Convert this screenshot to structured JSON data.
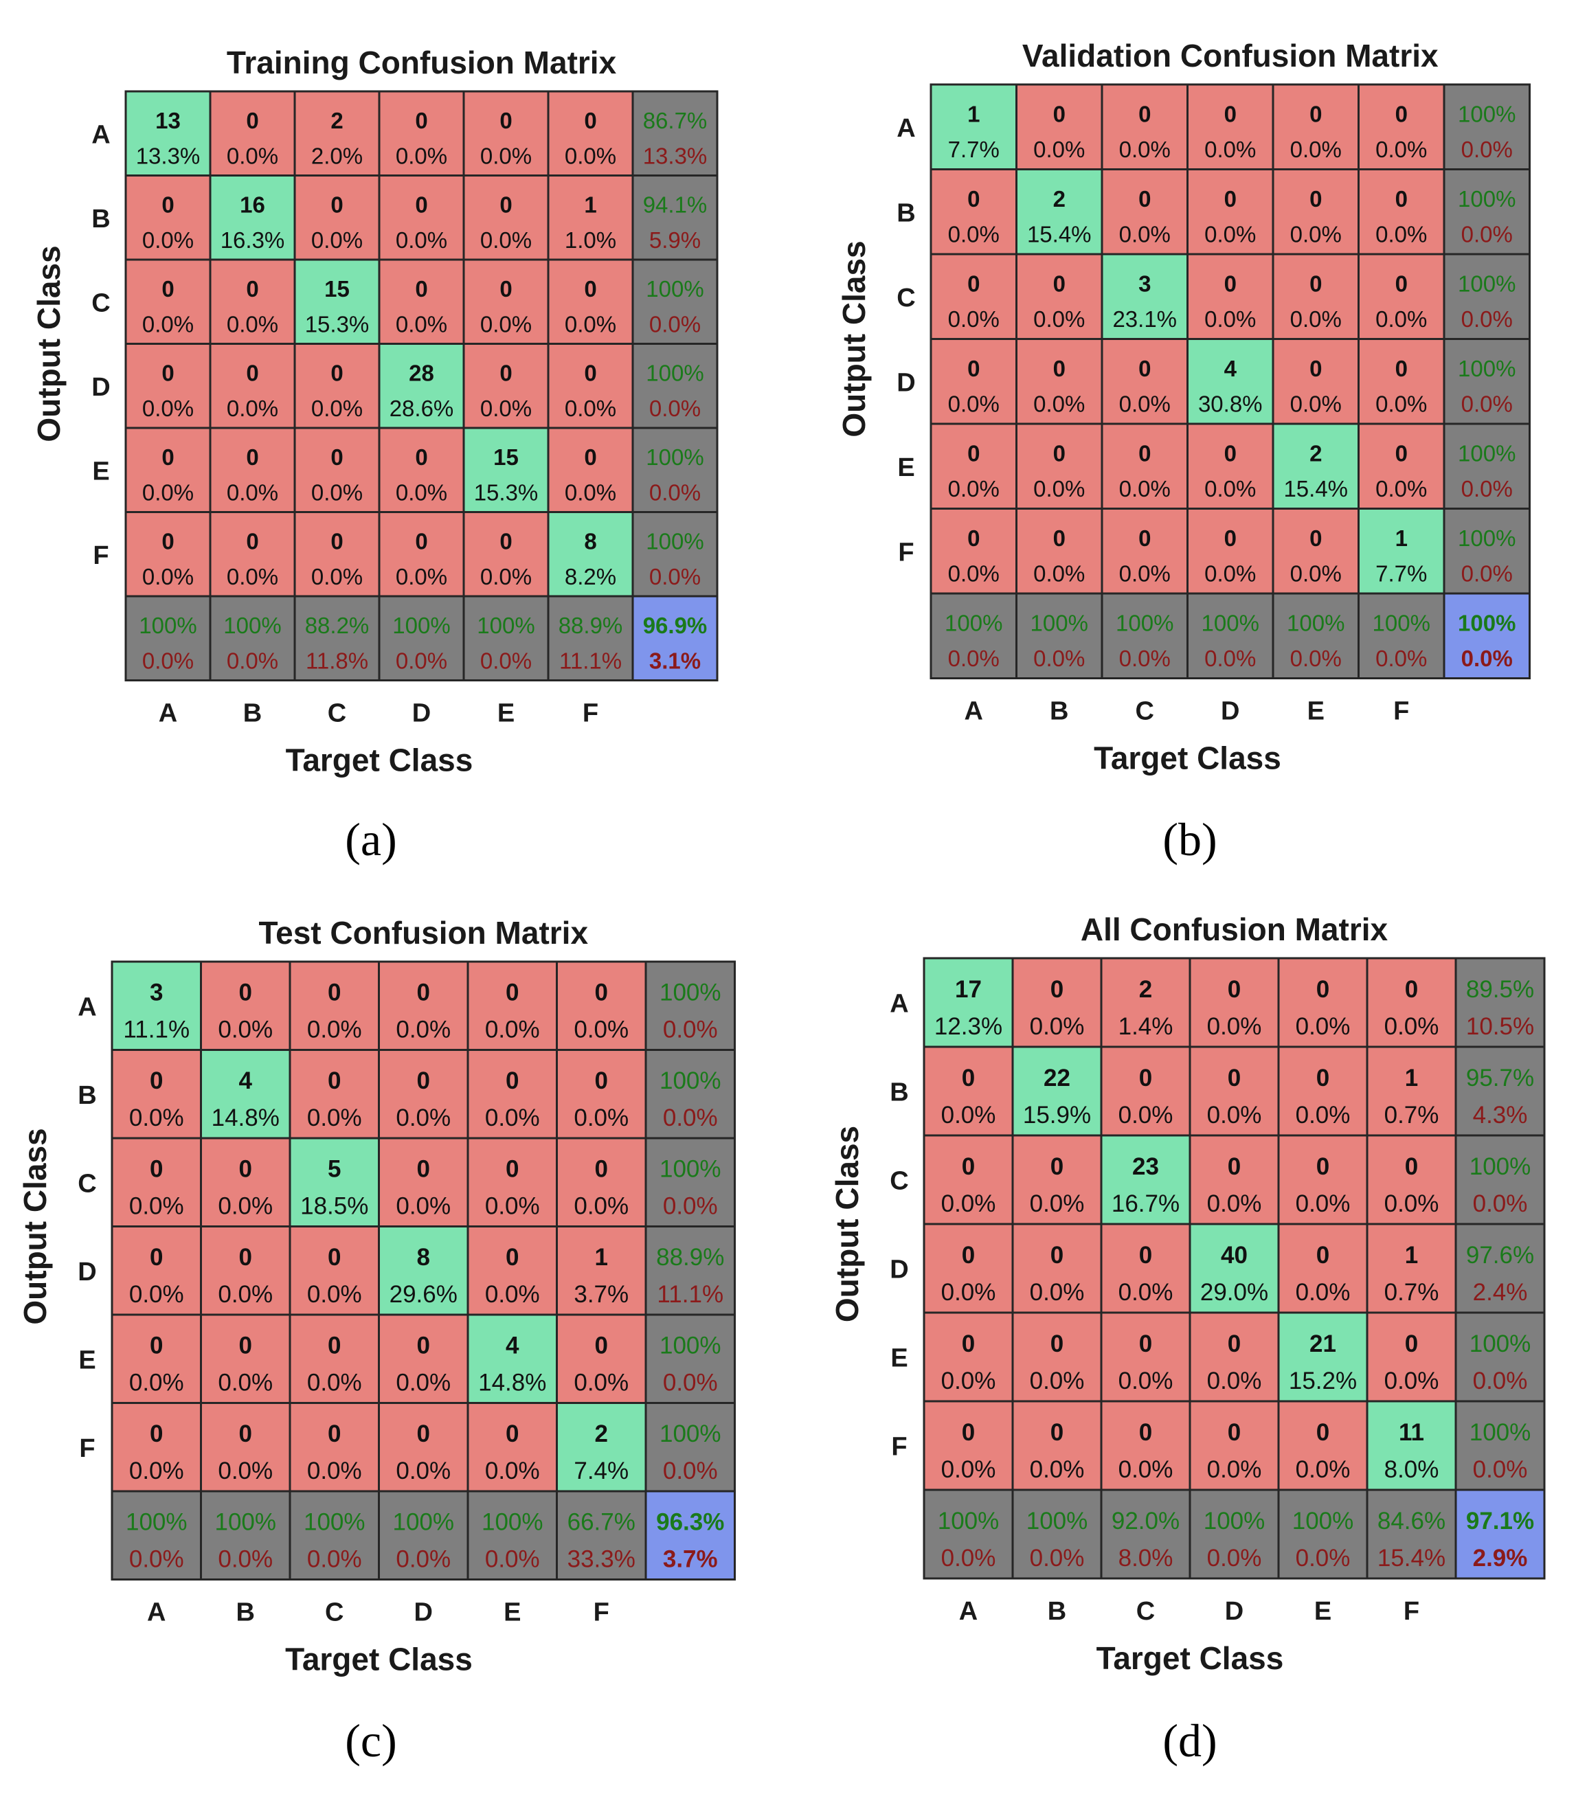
{
  "colors": {
    "correct_cell": "#7ee3b0",
    "wrong_cell": "#e8837e",
    "summary_cell": "#7f7f7f",
    "overall_cell": "#7f95ec",
    "grid_line": "#262626",
    "pct_text_green": "#1a7a1a",
    "pct_text_red": "#8b1a1a",
    "count_text": "#111111",
    "label_text": "#1a1a1a"
  },
  "chart_data": [
    {
      "type": "heatmap",
      "panel_label": "(a)",
      "title": "Training Confusion Matrix",
      "xlabel": "Target Class",
      "ylabel": "Output Class",
      "classes": [
        "A",
        "B",
        "C",
        "D",
        "E",
        "F"
      ],
      "counts": [
        [
          13,
          0,
          2,
          0,
          0,
          0
        ],
        [
          0,
          16,
          0,
          0,
          0,
          1
        ],
        [
          0,
          0,
          15,
          0,
          0,
          0
        ],
        [
          0,
          0,
          0,
          28,
          0,
          0
        ],
        [
          0,
          0,
          0,
          0,
          15,
          0
        ],
        [
          0,
          0,
          0,
          0,
          0,
          8
        ]
      ],
      "percents": [
        [
          "13.3%",
          "0.0%",
          "2.0%",
          "0.0%",
          "0.0%",
          "0.0%"
        ],
        [
          "0.0%",
          "16.3%",
          "0.0%",
          "0.0%",
          "0.0%",
          "1.0%"
        ],
        [
          "0.0%",
          "0.0%",
          "15.3%",
          "0.0%",
          "0.0%",
          "0.0%"
        ],
        [
          "0.0%",
          "0.0%",
          "0.0%",
          "28.6%",
          "0.0%",
          "0.0%"
        ],
        [
          "0.0%",
          "0.0%",
          "0.0%",
          "0.0%",
          "15.3%",
          "0.0%"
        ],
        [
          "0.0%",
          "0.0%",
          "0.0%",
          "0.0%",
          "0.0%",
          "8.2%"
        ]
      ],
      "row_summary": [
        [
          "86.7%",
          "13.3%"
        ],
        [
          "94.1%",
          "5.9%"
        ],
        [
          "100%",
          "0.0%"
        ],
        [
          "100%",
          "0.0%"
        ],
        [
          "100%",
          "0.0%"
        ],
        [
          "100%",
          "0.0%"
        ]
      ],
      "col_summary": [
        [
          "100%",
          "0.0%"
        ],
        [
          "100%",
          "0.0%"
        ],
        [
          "88.2%",
          "11.8%"
        ],
        [
          "100%",
          "0.0%"
        ],
        [
          "100%",
          "0.0%"
        ],
        [
          "88.9%",
          "11.1%"
        ]
      ],
      "overall": [
        "96.9%",
        "3.1%"
      ]
    },
    {
      "type": "heatmap",
      "panel_label": "(b)",
      "title": "Validation Confusion Matrix",
      "xlabel": "Target Class",
      "ylabel": "Output Class",
      "classes": [
        "A",
        "B",
        "C",
        "D",
        "E",
        "F"
      ],
      "counts": [
        [
          1,
          0,
          0,
          0,
          0,
          0
        ],
        [
          0,
          2,
          0,
          0,
          0,
          0
        ],
        [
          0,
          0,
          3,
          0,
          0,
          0
        ],
        [
          0,
          0,
          0,
          4,
          0,
          0
        ],
        [
          0,
          0,
          0,
          0,
          2,
          0
        ],
        [
          0,
          0,
          0,
          0,
          0,
          1
        ]
      ],
      "percents": [
        [
          "7.7%",
          "0.0%",
          "0.0%",
          "0.0%",
          "0.0%",
          "0.0%"
        ],
        [
          "0.0%",
          "15.4%",
          "0.0%",
          "0.0%",
          "0.0%",
          "0.0%"
        ],
        [
          "0.0%",
          "0.0%",
          "23.1%",
          "0.0%",
          "0.0%",
          "0.0%"
        ],
        [
          "0.0%",
          "0.0%",
          "0.0%",
          "30.8%",
          "0.0%",
          "0.0%"
        ],
        [
          "0.0%",
          "0.0%",
          "0.0%",
          "0.0%",
          "15.4%",
          "0.0%"
        ],
        [
          "0.0%",
          "0.0%",
          "0.0%",
          "0.0%",
          "0.0%",
          "7.7%"
        ]
      ],
      "row_summary": [
        [
          "100%",
          "0.0%"
        ],
        [
          "100%",
          "0.0%"
        ],
        [
          "100%",
          "0.0%"
        ],
        [
          "100%",
          "0.0%"
        ],
        [
          "100%",
          "0.0%"
        ],
        [
          "100%",
          "0.0%"
        ]
      ],
      "col_summary": [
        [
          "100%",
          "0.0%"
        ],
        [
          "100%",
          "0.0%"
        ],
        [
          "100%",
          "0.0%"
        ],
        [
          "100%",
          "0.0%"
        ],
        [
          "100%",
          "0.0%"
        ],
        [
          "100%",
          "0.0%"
        ]
      ],
      "overall": [
        "100%",
        "0.0%"
      ]
    },
    {
      "type": "heatmap",
      "panel_label": "(c)",
      "title": "Test Confusion Matrix",
      "xlabel": "Target Class",
      "ylabel": "Output Class",
      "classes": [
        "A",
        "B",
        "C",
        "D",
        "E",
        "F"
      ],
      "counts": [
        [
          3,
          0,
          0,
          0,
          0,
          0
        ],
        [
          0,
          4,
          0,
          0,
          0,
          0
        ],
        [
          0,
          0,
          5,
          0,
          0,
          0
        ],
        [
          0,
          0,
          0,
          8,
          0,
          1
        ],
        [
          0,
          0,
          0,
          0,
          4,
          0
        ],
        [
          0,
          0,
          0,
          0,
          0,
          2
        ]
      ],
      "percents": [
        [
          "11.1%",
          "0.0%",
          "0.0%",
          "0.0%",
          "0.0%",
          "0.0%"
        ],
        [
          "0.0%",
          "14.8%",
          "0.0%",
          "0.0%",
          "0.0%",
          "0.0%"
        ],
        [
          "0.0%",
          "0.0%",
          "18.5%",
          "0.0%",
          "0.0%",
          "0.0%"
        ],
        [
          "0.0%",
          "0.0%",
          "0.0%",
          "29.6%",
          "0.0%",
          "3.7%"
        ],
        [
          "0.0%",
          "0.0%",
          "0.0%",
          "0.0%",
          "14.8%",
          "0.0%"
        ],
        [
          "0.0%",
          "0.0%",
          "0.0%",
          "0.0%",
          "0.0%",
          "7.4%"
        ]
      ],
      "row_summary": [
        [
          "100%",
          "0.0%"
        ],
        [
          "100%",
          "0.0%"
        ],
        [
          "100%",
          "0.0%"
        ],
        [
          "88.9%",
          "11.1%"
        ],
        [
          "100%",
          "0.0%"
        ],
        [
          "100%",
          "0.0%"
        ]
      ],
      "col_summary": [
        [
          "100%",
          "0.0%"
        ],
        [
          "100%",
          "0.0%"
        ],
        [
          "100%",
          "0.0%"
        ],
        [
          "100%",
          "0.0%"
        ],
        [
          "100%",
          "0.0%"
        ],
        [
          "66.7%",
          "33.3%"
        ]
      ],
      "overall": [
        "96.3%",
        "3.7%"
      ]
    },
    {
      "type": "heatmap",
      "panel_label": "(d)",
      "title": "All Confusion Matrix",
      "xlabel": "Target Class",
      "ylabel": "Output Class",
      "classes": [
        "A",
        "B",
        "C",
        "D",
        "E",
        "F"
      ],
      "counts": [
        [
          17,
          0,
          2,
          0,
          0,
          0
        ],
        [
          0,
          22,
          0,
          0,
          0,
          1
        ],
        [
          0,
          0,
          23,
          0,
          0,
          0
        ],
        [
          0,
          0,
          0,
          40,
          0,
          1
        ],
        [
          0,
          0,
          0,
          0,
          21,
          0
        ],
        [
          0,
          0,
          0,
          0,
          0,
          11
        ]
      ],
      "percents": [
        [
          "12.3%",
          "0.0%",
          "1.4%",
          "0.0%",
          "0.0%",
          "0.0%"
        ],
        [
          "0.0%",
          "15.9%",
          "0.0%",
          "0.0%",
          "0.0%",
          "0.7%"
        ],
        [
          "0.0%",
          "0.0%",
          "16.7%",
          "0.0%",
          "0.0%",
          "0.0%"
        ],
        [
          "0.0%",
          "0.0%",
          "0.0%",
          "29.0%",
          "0.0%",
          "0.7%"
        ],
        [
          "0.0%",
          "0.0%",
          "0.0%",
          "0.0%",
          "15.2%",
          "0.0%"
        ],
        [
          "0.0%",
          "0.0%",
          "0.0%",
          "0.0%",
          "0.0%",
          "8.0%"
        ]
      ],
      "row_summary": [
        [
          "89.5%",
          "10.5%"
        ],
        [
          "95.7%",
          "4.3%"
        ],
        [
          "100%",
          "0.0%"
        ],
        [
          "97.6%",
          "2.4%"
        ],
        [
          "100%",
          "0.0%"
        ],
        [
          "100%",
          "0.0%"
        ]
      ],
      "col_summary": [
        [
          "100%",
          "0.0%"
        ],
        [
          "100%",
          "0.0%"
        ],
        [
          "92.0%",
          "8.0%"
        ],
        [
          "100%",
          "0.0%"
        ],
        [
          "100%",
          "0.0%"
        ],
        [
          "84.6%",
          "15.4%"
        ]
      ],
      "overall": [
        "97.1%",
        "2.9%"
      ]
    }
  ]
}
